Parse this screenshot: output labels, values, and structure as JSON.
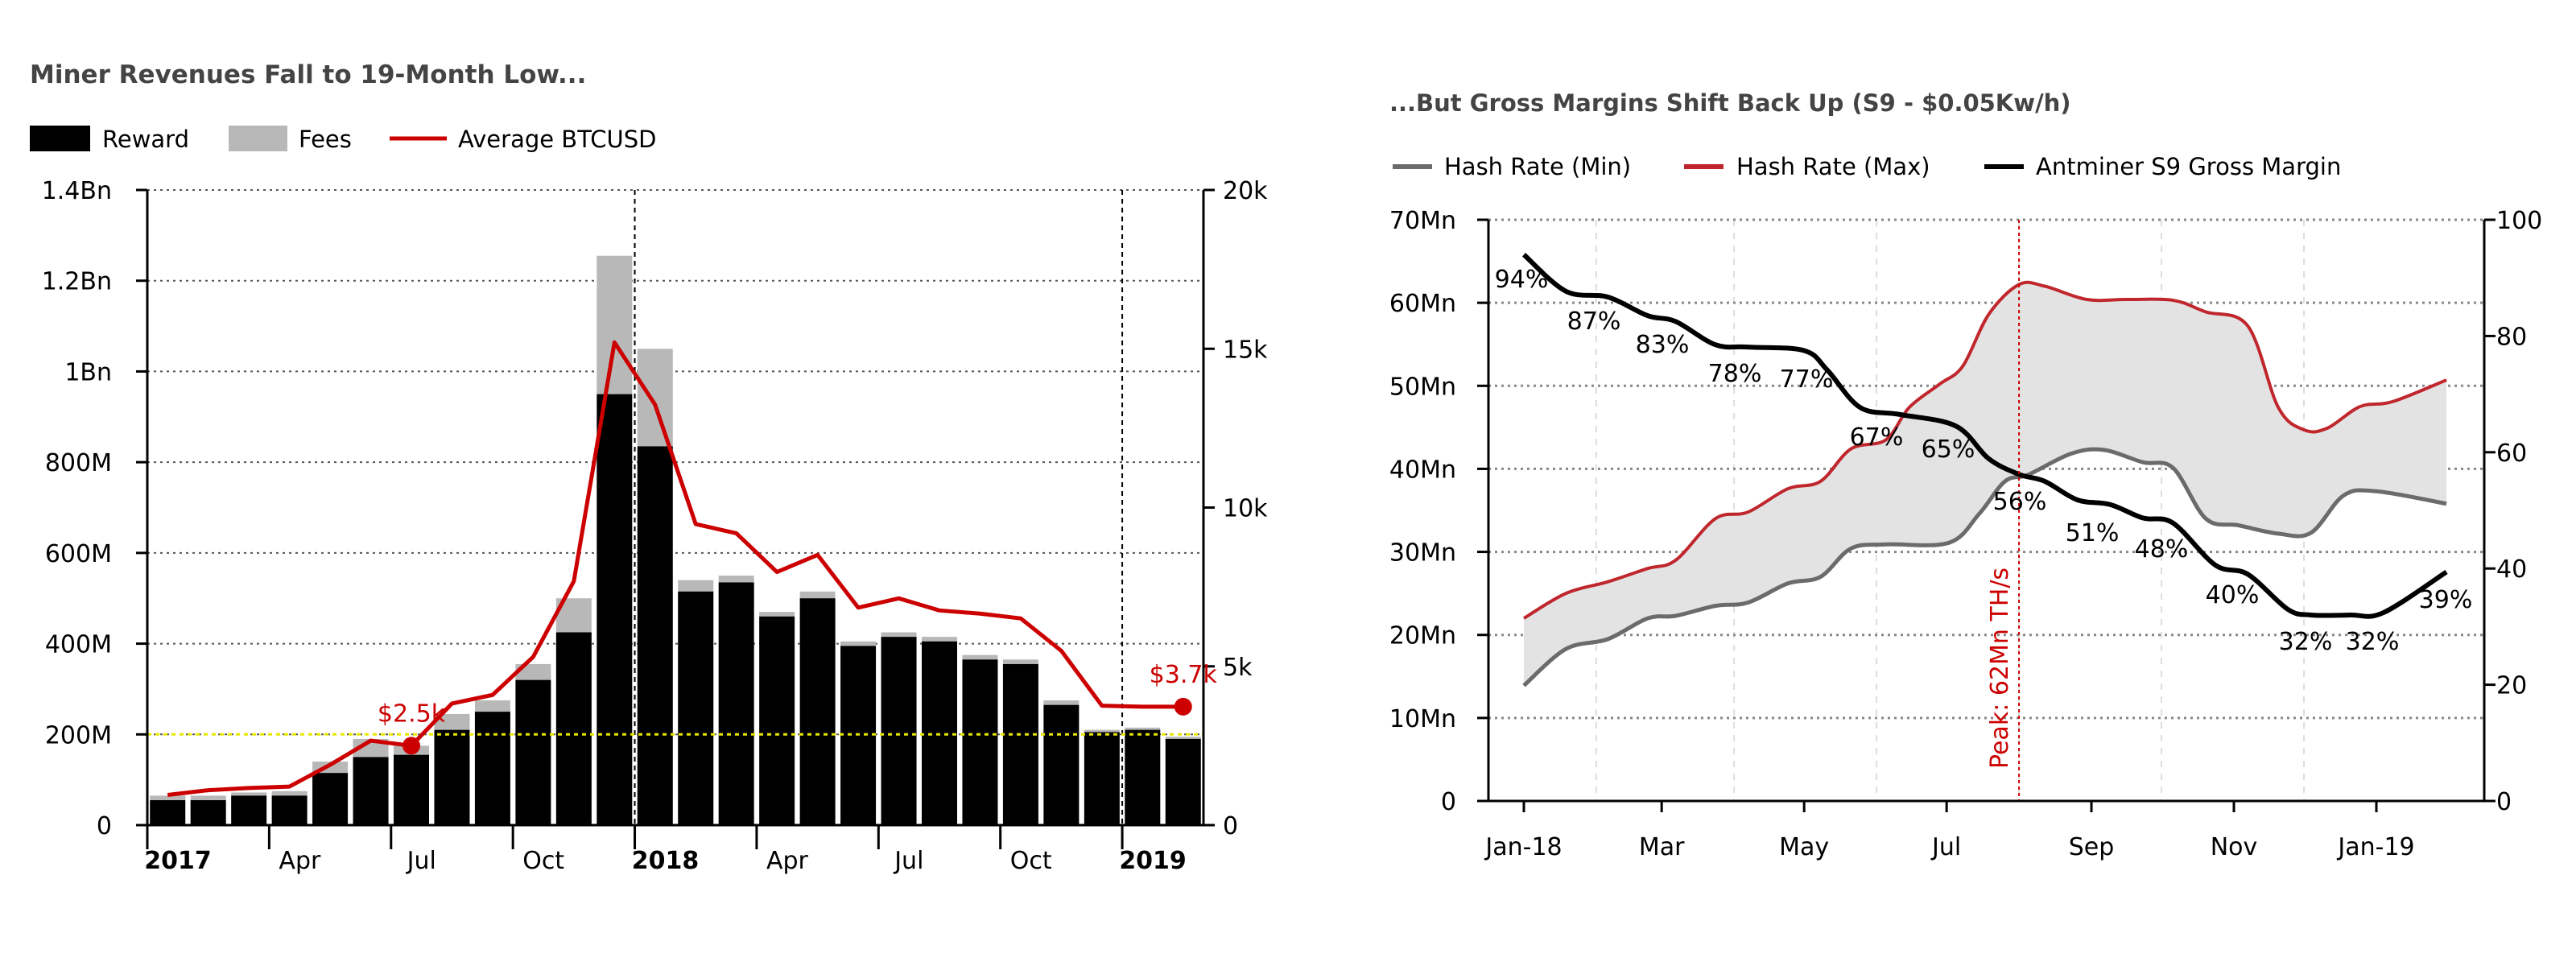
{
  "chart_data": [
    {
      "type": "bar",
      "title": "Miner Revenues Fall to 19-Month Low...",
      "stacked": true,
      "legend": {
        "placement": "top-left",
        "items": [
          {
            "label": "Reward",
            "color": "#000000"
          },
          {
            "label": "Fees",
            "color": "#b8b8b8"
          },
          {
            "label": "Average BTCUSD",
            "color": "#cc0000"
          }
        ]
      },
      "categories": [
        "2017-01",
        "2017-02",
        "2017-03",
        "2017-04",
        "2017-05",
        "2017-06",
        "2017-07",
        "2017-08",
        "2017-09",
        "2017-10",
        "2017-11",
        "2017-12",
        "2018-01",
        "2018-02",
        "2018-03",
        "2018-04",
        "2018-05",
        "2018-06",
        "2018-07",
        "2018-08",
        "2018-09",
        "2018-10",
        "2018-11",
        "2018-12",
        "2019-01",
        "2019-02"
      ],
      "series": [
        {
          "name": "Reward",
          "axis": "left",
          "values": [
            55,
            55,
            65,
            65,
            115,
            150,
            155,
            210,
            250,
            320,
            425,
            950,
            835,
            515,
            535,
            460,
            500,
            395,
            415,
            405,
            365,
            355,
            265,
            205,
            210,
            190
          ]
        },
        {
          "name": "Fees",
          "axis": "left",
          "values": [
            10,
            10,
            7,
            10,
            25,
            40,
            20,
            35,
            25,
            35,
            75,
            305,
            215,
            25,
            15,
            10,
            15,
            10,
            10,
            10,
            10,
            10,
            10,
            5,
            5,
            5
          ]
        },
        {
          "name": "Average BTCUSD",
          "type": "line",
          "axis": "right",
          "values": [
            950,
            1100,
            1170,
            1215,
            1900,
            2660,
            2500,
            3830,
            4100,
            5300,
            7680,
            15200,
            13240,
            9480,
            9190,
            7970,
            8510,
            6850,
            7140,
            6760,
            6660,
            6510,
            5490,
            3760,
            3730,
            3730
          ]
        }
      ],
      "x_tick_labels": [
        {
          "label": "2017",
          "bold": true,
          "month": "2017-01"
        },
        {
          "label": "Apr",
          "bold": false,
          "month": "2017-04"
        },
        {
          "label": "Jul",
          "bold": false,
          "month": "2017-07"
        },
        {
          "label": "Oct",
          "bold": false,
          "month": "2017-10"
        },
        {
          "label": "2018",
          "bold": true,
          "month": "2018-01"
        },
        {
          "label": "Apr",
          "bold": false,
          "month": "2018-04"
        },
        {
          "label": "Jul",
          "bold": false,
          "month": "2018-07"
        },
        {
          "label": "Oct",
          "bold": false,
          "month": "2018-10"
        },
        {
          "label": "2019",
          "bold": true,
          "month": "2019-01"
        }
      ],
      "y_left": {
        "ylim": [
          0,
          1400
        ],
        "unit": "M",
        "ticks": [
          0,
          200,
          400,
          600,
          800,
          1000,
          1200,
          1400
        ],
        "tick_labels": [
          "0",
          "200M",
          "400M",
          "600M",
          "800M",
          "1Bn",
          "1.2Bn",
          "1.4Bn"
        ]
      },
      "y_right": {
        "ylim": [
          0,
          20000
        ],
        "ticks": [
          0,
          5000,
          10000,
          15000,
          20000
        ],
        "tick_labels": [
          "0",
          "5k",
          "10k",
          "15k",
          "20k"
        ]
      },
      "reference_line": {
        "value": 200,
        "axis": "left",
        "color": "#e8e800",
        "style": "dotted"
      },
      "year_separators": [
        "2018-01",
        "2019-01"
      ],
      "annotations": [
        {
          "text": "$2.5k",
          "category": "2017-07",
          "value": 2500
        },
        {
          "text": "$3.7k",
          "category": "2019-02",
          "value": 3730
        }
      ],
      "grid": true
    },
    {
      "type": "line",
      "title": "...But Gross Margins Shift Back Up (S9 - $0.05Kw/h)",
      "legend": {
        "placement": "top-left",
        "items": [
          {
            "label": "Hash Rate (Min)",
            "color": "#6b6b6b"
          },
          {
            "label": "Hash Rate (Max)",
            "color": "#c0272d"
          },
          {
            "label": "Antminer S9 Gross Margin",
            "color": "#000000"
          }
        ]
      },
      "fill_between": {
        "color": "#e3e3e3",
        "series": [
          "Hash Rate (Min)",
          "Hash Rate (Max)"
        ]
      },
      "series": [
        {
          "name": "Hash Rate (Max)",
          "axis": "left",
          "points": [
            [
              "2018-01-01",
              22
            ],
            [
              "2018-01-19",
              25
            ],
            [
              "2018-02-06",
              26.4
            ],
            [
              "2018-02-23",
              28
            ],
            [
              "2018-03-07",
              29
            ],
            [
              "2018-03-24",
              34
            ],
            [
              "2018-04-07",
              34.8
            ],
            [
              "2018-04-24",
              37.6
            ],
            [
              "2018-05-08",
              38.5
            ],
            [
              "2018-05-21",
              42.4
            ],
            [
              "2018-06-05",
              43.5
            ],
            [
              "2018-06-15",
              47.4
            ],
            [
              "2018-06-28",
              50.2
            ],
            [
              "2018-07-08",
              52.4
            ],
            [
              "2018-07-19",
              58.6
            ],
            [
              "2018-08-01",
              62.2
            ],
            [
              "2018-08-12",
              62
            ],
            [
              "2018-08-30",
              60.4
            ],
            [
              "2018-09-16",
              60.4
            ],
            [
              "2018-10-06",
              60.3
            ],
            [
              "2018-10-20",
              58.9
            ],
            [
              "2018-11-07",
              57.2
            ],
            [
              "2018-11-20",
              47.4
            ],
            [
              "2018-12-01",
              44.7
            ],
            [
              "2018-12-11",
              44.9
            ],
            [
              "2018-12-25",
              47.5
            ],
            [
              "2019-01-08",
              48.1
            ],
            [
              "2019-01-31",
              50.7
            ]
          ]
        },
        {
          "name": "Hash Rate (Min)",
          "axis": "left",
          "points": [
            [
              "2018-01-01",
              13.9
            ],
            [
              "2018-01-19",
              18.3
            ],
            [
              "2018-02-06",
              19.5
            ],
            [
              "2018-02-23",
              22
            ],
            [
              "2018-03-07",
              22.3
            ],
            [
              "2018-03-24",
              23.5
            ],
            [
              "2018-04-07",
              23.9
            ],
            [
              "2018-04-24",
              26.2
            ],
            [
              "2018-05-08",
              27
            ],
            [
              "2018-05-21",
              30.4
            ],
            [
              "2018-06-05",
              30.9
            ],
            [
              "2018-07-02",
              31.1
            ],
            [
              "2018-07-15",
              34.6
            ],
            [
              "2018-07-26",
              38.5
            ],
            [
              "2018-08-05",
              39.3
            ],
            [
              "2018-08-23",
              41.8
            ],
            [
              "2018-09-06",
              42.3
            ],
            [
              "2018-09-23",
              40.8
            ],
            [
              "2018-10-06",
              40.1
            ],
            [
              "2018-10-20",
              34
            ],
            [
              "2018-11-03",
              33.2
            ],
            [
              "2018-11-20",
              32.2
            ],
            [
              "2018-12-04",
              32.3
            ],
            [
              "2018-12-18",
              36.8
            ],
            [
              "2019-01-01",
              37.3
            ],
            [
              "2019-01-31",
              35.8
            ]
          ]
        },
        {
          "name": "Antminer S9 Gross Margin",
          "axis": "right",
          "points": [
            [
              "2018-01-01",
              94
            ],
            [
              "2018-01-19",
              87.7
            ],
            [
              "2018-02-06",
              86.7
            ],
            [
              "2018-02-23",
              83.5
            ],
            [
              "2018-03-07",
              82.5
            ],
            [
              "2018-03-24",
              78.5
            ],
            [
              "2018-04-07",
              78.1
            ],
            [
              "2018-05-01",
              77.5
            ],
            [
              "2018-05-11",
              74.1
            ],
            [
              "2018-05-25",
              67.7
            ],
            [
              "2018-06-11",
              66.5
            ],
            [
              "2018-07-05",
              64.5
            ],
            [
              "2018-07-19",
              58.9
            ],
            [
              "2018-08-01",
              56.2
            ],
            [
              "2018-08-12",
              55
            ],
            [
              "2018-08-26",
              51.8
            ],
            [
              "2018-09-09",
              51
            ],
            [
              "2018-09-23",
              48.7
            ],
            [
              "2018-10-06",
              47.8
            ],
            [
              "2018-10-24",
              40.6
            ],
            [
              "2018-11-07",
              39
            ],
            [
              "2018-11-24",
              33
            ],
            [
              "2018-12-04",
              32
            ],
            [
              "2018-12-21",
              32
            ],
            [
              "2019-01-04",
              32.4
            ],
            [
              "2019-01-31",
              39.4
            ]
          ]
        }
      ],
      "margin_labels": [
        "94%",
        "87%",
        "83%",
        "78%",
        "77%",
        "67%",
        "65%",
        "56%",
        "51%",
        "48%",
        "40%",
        "32%",
        "32%",
        "39%"
      ],
      "x_tick_labels": [
        {
          "label": "Jan-18",
          "date": "2018-01-01"
        },
        {
          "label": "Mar",
          "date": "2018-03-01"
        },
        {
          "label": "May",
          "date": "2018-05-01"
        },
        {
          "label": "Jul",
          "date": "2018-07-01"
        },
        {
          "label": "Sep",
          "date": "2018-09-01"
        },
        {
          "label": "Nov",
          "date": "2018-11-01"
        },
        {
          "label": "Jan-19",
          "date": "2019-01-01"
        }
      ],
      "y_left": {
        "ylim": [
          0,
          70
        ],
        "ticks": [
          0,
          10,
          20,
          30,
          40,
          50,
          60,
          70
        ],
        "tick_labels": [
          "0",
          "10Mn",
          "20Mn",
          "30Mn",
          "40Mn",
          "50Mn",
          "60Mn",
          "70Mn"
        ]
      },
      "y_right": {
        "ylim": [
          0,
          100
        ],
        "ticks": [
          0,
          20,
          40,
          60,
          80,
          100
        ],
        "tick_labels": [
          "0",
          "20",
          "40",
          "60",
          "80",
          "100"
        ]
      },
      "peak_marker": {
        "date": "2018-08-01",
        "text": "Peak: 62Mn TH/s",
        "color": "#cc0000"
      },
      "grid": true
    }
  ]
}
